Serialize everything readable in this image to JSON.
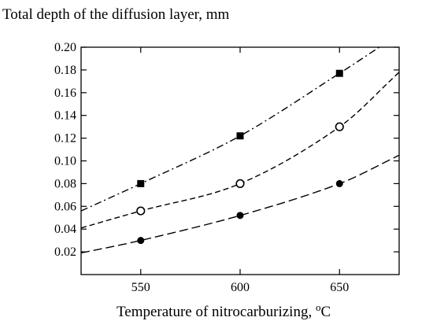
{
  "chart_data": {
    "type": "line",
    "title": "",
    "ylabel": "Total depth of the diffusion layer, mm",
    "xlabel_main": "Temperature of nitrocarburizing, ",
    "xlabel_super": "o",
    "xlabel_unit": "C",
    "xlim": [
      520,
      680
    ],
    "ylim": [
      0.0,
      0.2
    ],
    "x_ticks": [
      550,
      600,
      650
    ],
    "x_tick_labels": [
      "550",
      "600",
      "650"
    ],
    "y_ticks": [
      0.02,
      0.04,
      0.06,
      0.08,
      0.1,
      0.12,
      0.14,
      0.16,
      0.18,
      0.2
    ],
    "y_tick_labels": [
      "0.02",
      "0.04",
      "0.06",
      "0.08",
      "0.10",
      "0.12",
      "0.14",
      "0.16",
      "0.18",
      "0.20"
    ],
    "grid": false,
    "series": [
      {
        "marker": "square-filled",
        "line_style": "dash-dot",
        "x": [
          550,
          600,
          650
        ],
        "values": [
          0.08,
          0.122,
          0.177
        ],
        "curve_x": [
          520,
          550,
          600,
          650,
          670
        ],
        "curve_y": [
          0.056,
          0.08,
          0.122,
          0.177,
          0.2
        ]
      },
      {
        "marker": "circle-open",
        "line_style": "dashed",
        "x": [
          550,
          600,
          650
        ],
        "values": [
          0.056,
          0.08,
          0.13
        ],
        "curve_x": [
          520,
          550,
          600,
          650,
          680
        ],
        "curve_y": [
          0.041,
          0.056,
          0.08,
          0.13,
          0.178
        ]
      },
      {
        "marker": "circle-filled",
        "line_style": "long-dash",
        "x": [
          550,
          600,
          650
        ],
        "values": [
          0.03,
          0.052,
          0.08
        ],
        "curve_x": [
          520,
          550,
          600,
          650,
          680
        ],
        "curve_y": [
          0.019,
          0.03,
          0.052,
          0.08,
          0.105
        ]
      }
    ]
  }
}
